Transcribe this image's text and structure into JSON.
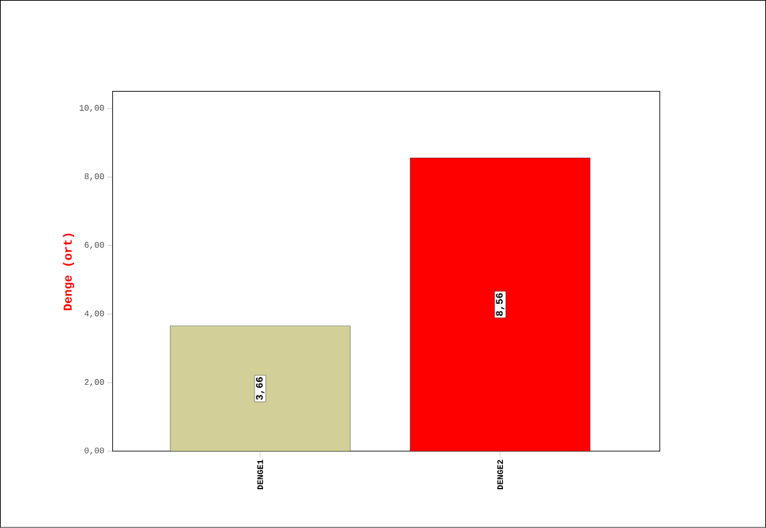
{
  "chart_data": {
    "type": "bar",
    "ylabel": "Denge (ort)",
    "categories": [
      "DENGE1",
      "DENGE2"
    ],
    "values": [
      3.66,
      8.56
    ],
    "colors": [
      "#d3cf98",
      "#ff0000"
    ],
    "value_labels": [
      "3,66",
      "8,56"
    ],
    "ylim": [
      0,
      10.5
    ],
    "yticks": [
      {
        "value": 0,
        "label": "0,00"
      },
      {
        "value": 2,
        "label": "2,00"
      },
      {
        "value": 4,
        "label": "4,00"
      },
      {
        "value": 6,
        "label": "6,00"
      },
      {
        "value": 8,
        "label": "8,00"
      },
      {
        "value": 10,
        "label": "10,00"
      }
    ],
    "grid": false
  }
}
